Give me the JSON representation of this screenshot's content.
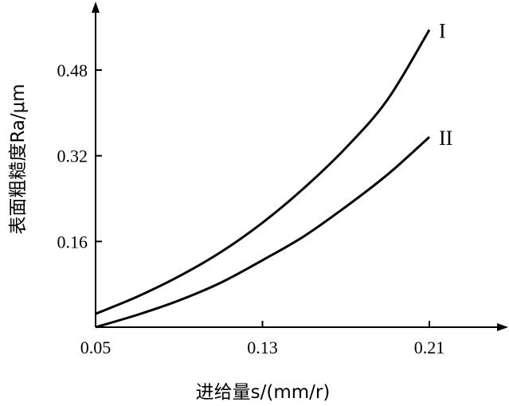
{
  "chart_data": {
    "type": "line",
    "xlabel": "进给量s/(mm/r)",
    "ylabel": "表面粗糙度Ra/μm",
    "x_ticks": [
      "0.05",
      "0.13",
      "0.21"
    ],
    "y_ticks": [
      "0.16",
      "0.32",
      "0.48"
    ],
    "xlim": [
      0.05,
      0.24
    ],
    "ylim": [
      0.0,
      0.6
    ],
    "grid": false,
    "series": [
      {
        "name": "I",
        "x": [
          0.05,
          0.07,
          0.09,
          0.11,
          0.13,
          0.15,
          0.17,
          0.19,
          0.21
        ],
        "values": [
          0.025,
          0.057,
          0.095,
          0.14,
          0.195,
          0.26,
          0.335,
          0.425,
          0.555
        ]
      },
      {
        "name": "II",
        "x": [
          0.05,
          0.07,
          0.09,
          0.11,
          0.13,
          0.15,
          0.17,
          0.19,
          0.21
        ],
        "values": [
          0.0,
          0.023,
          0.05,
          0.083,
          0.125,
          0.17,
          0.225,
          0.285,
          0.355
        ]
      }
    ]
  }
}
